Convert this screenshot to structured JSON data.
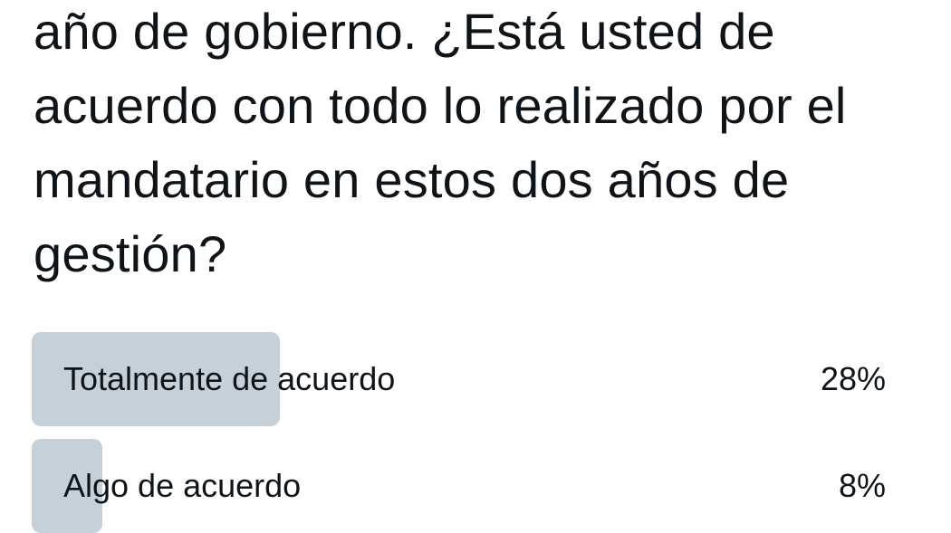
{
  "poll": {
    "question": "año de gobierno. ¿Está usted de acuerdo con todo lo realizado por el mandatario en estos dos años de gestión?",
    "options": [
      {
        "label": "Totalmente de acuerdo",
        "percent_label": "28%",
        "percent": 28
      },
      {
        "label": "Algo de acuerdo",
        "percent_label": "8%",
        "percent": 8
      }
    ],
    "bar_color": "#c5d0d8"
  }
}
